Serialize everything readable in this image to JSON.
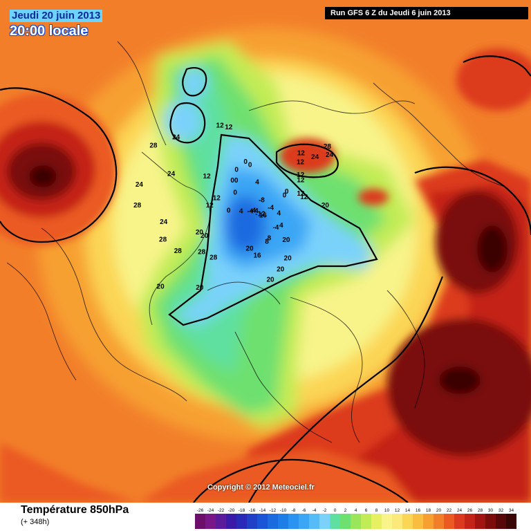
{
  "header": {
    "date": "Jeudi 20 juin 2013",
    "local_time": "20:00 locale",
    "run": "Run GFS 6 Z du Jeudi 6 juin 2013"
  },
  "footer": {
    "variable": "Température 850hPa",
    "forecast_hours": "(+ 348h)",
    "copyright": "Copyright © 2012 Meteociel.fr"
  },
  "legend": {
    "ticks": [
      "-26",
      "-24",
      "-22",
      "-20",
      "-18",
      "-16",
      "-14",
      "-12",
      "-10",
      "-8",
      "-6",
      "-4",
      "-2",
      "0",
      "2",
      "4",
      "6",
      "8",
      "10",
      "12",
      "14",
      "16",
      "18",
      "20",
      "22",
      "24",
      "26",
      "28",
      "30",
      "32",
      "34"
    ],
    "colors": [
      "#6b0f6b",
      "#7a1788",
      "#5a1a9a",
      "#3a1aa8",
      "#2a2ab8",
      "#2040c8",
      "#1a55d8",
      "#1a6ae0",
      "#1e7ee8",
      "#2a92f0",
      "#3aa6f5",
      "#55bcf8",
      "#7ad2fb",
      "#5fe0a0",
      "#6ee070",
      "#9ae65a",
      "#c2ec55",
      "#e6f060",
      "#f8f48a",
      "#fbe97a",
      "#fbd655",
      "#f9bd3f",
      "#f7a032",
      "#f27e2a",
      "#ea5a22",
      "#dc3a1e",
      "#c42418",
      "#a01412",
      "#7a0c0c",
      "#580808",
      "#3a0505"
    ]
  },
  "map_labels": [
    {
      "text": "12",
      "lon": -160,
      "lat": 50
    },
    {
      "text": "12",
      "lon": -155,
      "lat": 52
    },
    {
      "text": "20",
      "lon": -170,
      "lat": 35
    },
    {
      "text": "24",
      "lon": -135,
      "lat": 22
    },
    {
      "text": "28",
      "lon": -130,
      "lat": 20
    },
    {
      "text": "24",
      "lon": -130,
      "lat": 30
    },
    {
      "text": "0",
      "lon": -150,
      "lat": 65
    },
    {
      "text": "0",
      "lon": -145,
      "lat": 62
    },
    {
      "text": "4",
      "lon": 170,
      "lat": 70
    },
    {
      "text": "4",
      "lon": 150,
      "lat": 63
    },
    {
      "text": "-4",
      "lon": 140,
      "lat": 65
    },
    {
      "text": "8",
      "lon": 120,
      "lat": 60
    },
    {
      "text": "8",
      "lon": 115,
      "lat": 58
    },
    {
      "text": "16",
      "lon": 100,
      "lat": 48
    },
    {
      "text": "20",
      "lon": 130,
      "lat": 40
    },
    {
      "text": "20",
      "lon": 120,
      "lat": 35
    },
    {
      "text": "20",
      "lon": 110,
      "lat": 30
    },
    {
      "text": "20",
      "lon": 140,
      "lat": 52
    },
    {
      "text": "20",
      "lon": 90,
      "lat": 53
    },
    {
      "text": "-4",
      "lon": 180,
      "lat": 78
    },
    {
      "text": "-12",
      "lon": 120,
      "lat": 82
    },
    {
      "text": "16",
      "lon": 130,
      "lat": 80
    },
    {
      "text": "-4",
      "lon": 80,
      "lat": 85
    },
    {
      "text": "-4",
      "lon": 60,
      "lat": 84
    },
    {
      "text": "-4",
      "lon": 50,
      "lat": 82
    },
    {
      "text": "-8",
      "lon": -120,
      "lat": 84
    },
    {
      "text": "4",
      "lon": 30,
      "lat": 75
    },
    {
      "text": "0",
      "lon": 20,
      "lat": 65
    },
    {
      "text": "12",
      "lon": -140,
      "lat": 48
    },
    {
      "text": "12",
      "lon": -135,
      "lat": 46
    },
    {
      "text": "12",
      "lon": -125,
      "lat": 40
    },
    {
      "text": "12",
      "lon": -120,
      "lat": 35
    },
    {
      "text": "4",
      "lon": -80,
      "lat": 70
    },
    {
      "text": "0",
      "lon": -70,
      "lat": 55
    },
    {
      "text": "0",
      "lon": -65,
      "lat": 52
    },
    {
      "text": "0",
      "lon": -50,
      "lat": 55
    },
    {
      "text": "12",
      "lon": 0,
      "lat": 55
    },
    {
      "text": "12",
      "lon": -20,
      "lat": 42
    },
    {
      "text": "0",
      "lon": -40,
      "lat": 62
    },
    {
      "text": "0",
      "lon": -35,
      "lat": 60
    },
    {
      "text": "12",
      "lon": -60,
      "lat": 25
    },
    {
      "text": "12",
      "lon": -55,
      "lat": 22
    },
    {
      "text": "28",
      "lon": 60,
      "lat": 35
    },
    {
      "text": "28",
      "lon": 50,
      "lat": 32
    },
    {
      "text": "20",
      "lon": 40,
      "lat": 40
    },
    {
      "text": "20",
      "lon": 35,
      "lat": 38
    },
    {
      "text": "20",
      "lon": 65,
      "lat": 15
    },
    {
      "text": "28",
      "lon": 40,
      "lat": 20
    },
    {
      "text": "24",
      "lon": 20,
      "lat": 18
    },
    {
      "text": "28",
      "lon": 30,
      "lat": 15
    },
    {
      "text": "24",
      "lon": -10,
      "lat": 20
    },
    {
      "text": "24",
      "lon": -30,
      "lat": 12
    },
    {
      "text": "28",
      "lon": -20,
      "lat": 5
    },
    {
      "text": "28",
      "lon": 10,
      "lat": 5
    },
    {
      "text": "24",
      "lon": 0,
      "lat": 5
    },
    {
      "text": "20",
      "lon": 50,
      "lat": 2
    },
    {
      "text": "0",
      "lon": -20,
      "lat": 68
    },
    {
      "text": "12",
      "lon": 10,
      "lat": 50
    }
  ]
}
